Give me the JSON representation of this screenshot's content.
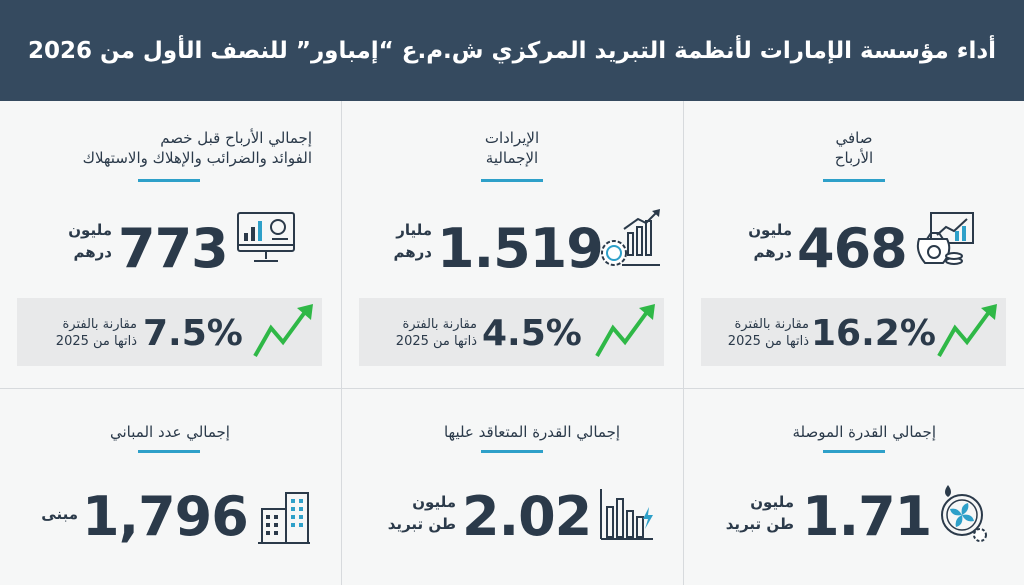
{
  "title": "أداء مؤسسة الإمارات لأنظمة التبريد المركزي ش.م.ع “إمباور” للنصف الأول من 2026",
  "colors": {
    "header": "#354a5f",
    "accent_line": "#2ea0c9",
    "arrow": "#2fb847",
    "text": "#2b3a4a"
  },
  "metrics": [
    {
      "label_line1": "صافي",
      "label_line2": "الأرباح",
      "value": "468",
      "unit_line1": "مليون",
      "unit_line2": "درهم",
      "change": "16.2%",
      "compare_line1": "مقارنة بالفترة",
      "compare_line2": "ذاتها من 2025",
      "icon": "money-bag-chart-icon"
    },
    {
      "label_line1": "الإيرادات",
      "label_line2": "الإجمالية",
      "value": "1.519",
      "unit_line1": "مليار",
      "unit_line2": "درهم",
      "change": "4.5%",
      "compare_line1": "مقارنة بالفترة",
      "compare_line2": "ذاتها من 2025",
      "icon": "coin-gear-chart-icon"
    },
    {
      "label_line1": "إجمالي الأرباح قبل خصم",
      "label_line2": "الفوائد والضرائب والإهلاك والاستهلاك",
      "value": "773",
      "unit_line1": "مليون",
      "unit_line2": "درهم",
      "change": "7.5%",
      "compare_line1": "مقارنة بالفترة",
      "compare_line2": "ذاتها من 2025",
      "icon": "monitor-chart-icon"
    }
  ],
  "capacity": [
    {
      "label": "إجمالي القدرة الموصلة",
      "value": "1.71",
      "unit_line1": "مليون",
      "unit_line2": "طن تبريد",
      "icon": "cooling-fan-icon"
    },
    {
      "label": "إجمالي القدرة المتعاقد عليها",
      "value": "2.02",
      "unit_line1": "مليون",
      "unit_line2": "طن تبريد",
      "icon": "energy-bars-icon"
    },
    {
      "label": "إجمالي عدد المباني",
      "value": "1,796",
      "unit_line1": "مبنى",
      "icon": "buildings-icon"
    }
  ]
}
